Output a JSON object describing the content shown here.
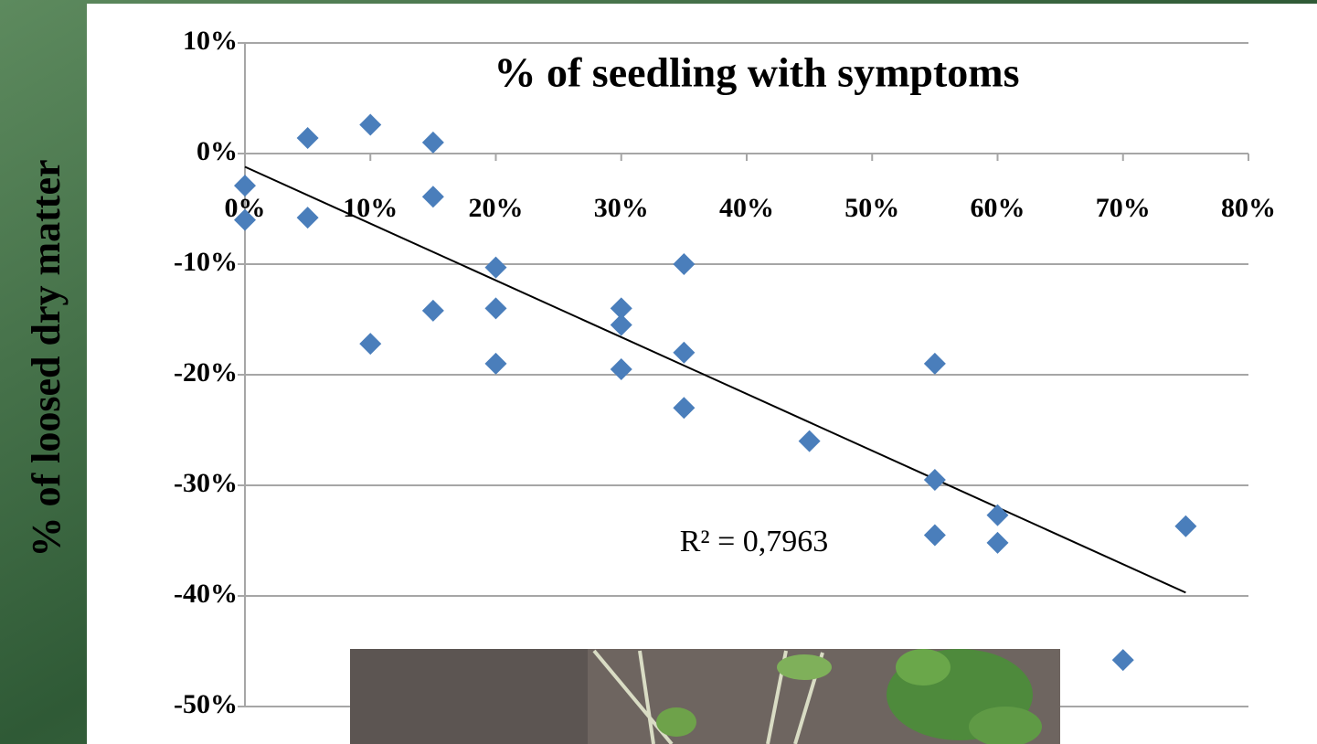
{
  "chart_data": {
    "type": "scatter",
    "title": "% of seedling with symptoms",
    "y_label": "% of loosed dry matter",
    "annotation": "R² = 0,7963",
    "color": "#4a7ebb",
    "x": [
      0,
      0,
      5,
      5,
      10,
      10,
      15,
      15,
      15,
      20,
      20,
      20,
      30,
      30,
      30,
      35,
      35,
      35,
      45,
      55,
      55,
      55,
      60,
      60,
      70,
      75
    ],
    "values": [
      -2.9,
      -6,
      1.4,
      -5.8,
      2.6,
      -17.2,
      1,
      -3.9,
      -14.2,
      -10.3,
      -14,
      -19,
      -14,
      -15.5,
      -19.5,
      -10,
      -18,
      -23,
      -26,
      -19,
      -29.5,
      -34.5,
      -32.7,
      -35.2,
      -45.8,
      -33.7
    ],
    "trendline": {
      "x": [
        0,
        75
      ],
      "values": [
        -1.2,
        -39.7
      ],
      "color": "#000000"
    },
    "xlim": [
      0,
      80
    ],
    "xticks": [
      {
        "value": 0,
        "label": "0%"
      },
      {
        "value": 10,
        "label": "10%"
      },
      {
        "value": 20,
        "label": "20%"
      },
      {
        "value": 30,
        "label": "30%"
      },
      {
        "value": 40,
        "label": "40%"
      },
      {
        "value": 50,
        "label": "50%"
      },
      {
        "value": 60,
        "label": "60%"
      },
      {
        "value": 70,
        "label": "70%"
      },
      {
        "value": 80,
        "label": "80%"
      }
    ],
    "ylim": [
      -50,
      10
    ],
    "yticks": [
      {
        "value": 10,
        "label": "10%"
      },
      {
        "value": 0,
        "label": "0%"
      },
      {
        "value": -10,
        "label": "-10%"
      },
      {
        "value": -20,
        "label": "-20%"
      },
      {
        "value": -30,
        "label": "-30%"
      },
      {
        "value": -40,
        "label": "-40%"
      },
      {
        "value": -50,
        "label": "-50%"
      }
    ],
    "grid": true
  }
}
